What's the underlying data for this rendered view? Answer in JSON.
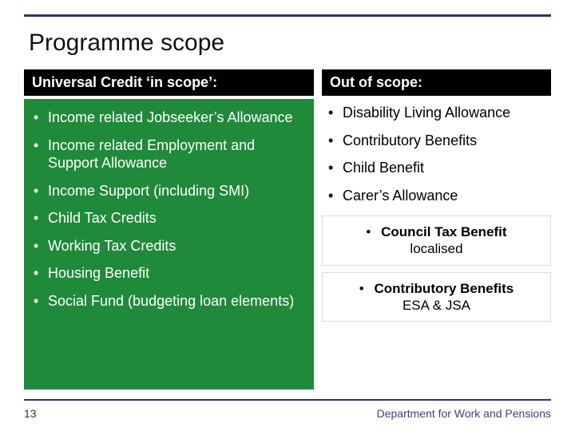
{
  "colors": {
    "rule": "#3e2a66",
    "header_bg": "#000000",
    "header_fg": "#ffffff",
    "green_bg": "#1f8a3a",
    "green_fg": "#ffffff",
    "text": "#000000",
    "dept": "#4b3b7a"
  },
  "title": "Programme scope",
  "left": {
    "header": "Universal Credit ‘in scope’:",
    "items": [
      "Income related Jobseeker’s Allowance",
      "Income related Employment and Support Allowance",
      "Income Support (including SMI)",
      "Child Tax Credits",
      "Working Tax Credits",
      "Housing Benefit",
      "Social Fund (budgeting loan elements)"
    ]
  },
  "right": {
    "header": "Out of scope:",
    "items": [
      "Disability Living Allowance",
      "Contributory Benefits",
      "Child Benefit",
      "Carer’s Allowance"
    ],
    "callouts": [
      {
        "bold": "Council Tax Benefit",
        "rest": "localised"
      },
      {
        "bold": "Contributory Benefits",
        "rest": "ESA & JSA"
      }
    ]
  },
  "footer": {
    "page": "13",
    "dept": "Department for Work and Pensions"
  },
  "typography": {
    "title_fontsize": 30,
    "header_fontsize": 18,
    "item_fontsize": 18,
    "footer_fontsize": 14
  }
}
